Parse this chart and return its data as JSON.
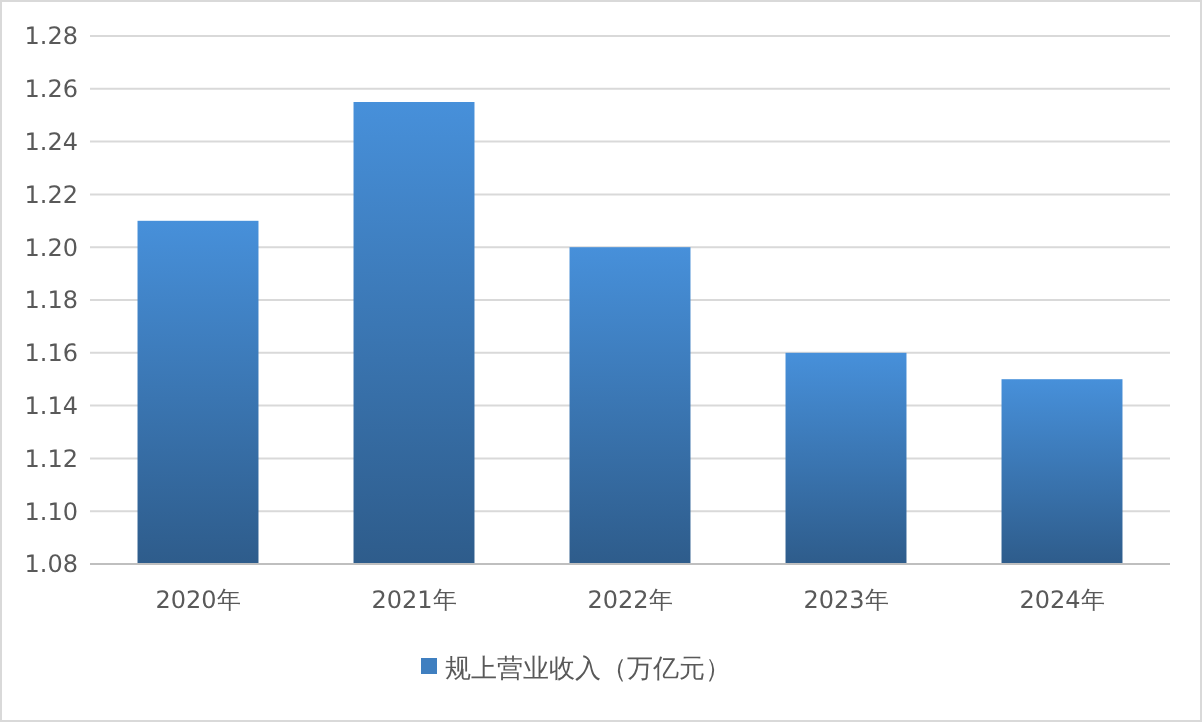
{
  "chart_data": {
    "type": "bar",
    "categories": [
      "2020年",
      "2021年",
      "2022年",
      "2023年",
      "2024年"
    ],
    "series": [
      {
        "name": "规上营业收入（万亿元）",
        "color": "#3f7fc0",
        "values": [
          1.21,
          1.255,
          1.2,
          1.16,
          1.15
        ]
      }
    ],
    "ylim": [
      1.08,
      1.28
    ],
    "yticks": [
      {
        "value": 1.08,
        "label": "1.08"
      },
      {
        "value": 1.1,
        "label": "1.10"
      },
      {
        "value": 1.12,
        "label": "1.12"
      },
      {
        "value": 1.14,
        "label": "1.14"
      },
      {
        "value": 1.16,
        "label": "1.16"
      },
      {
        "value": 1.18,
        "label": "1.18"
      },
      {
        "value": 1.2,
        "label": "1.20"
      },
      {
        "value": 1.22,
        "label": "1.22"
      },
      {
        "value": 1.24,
        "label": "1.24"
      },
      {
        "value": 1.26,
        "label": "1.26"
      },
      {
        "value": 1.28,
        "label": "1.28"
      }
    ],
    "grid": "y",
    "legend": "bottom"
  }
}
